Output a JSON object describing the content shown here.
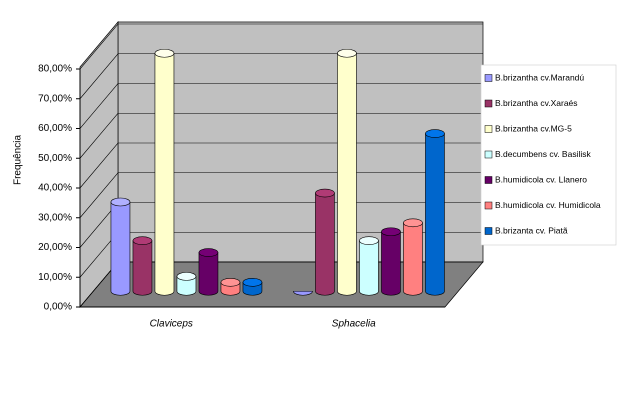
{
  "chart_data": {
    "type": "bar3d",
    "y_label": "Frequência",
    "categories": [
      "Claviceps",
      "Sphacelia"
    ],
    "series": [
      {
        "name": "B.brizantha cv.Marandú",
        "color": "#9999ff",
        "values": [
          30,
          0
        ]
      },
      {
        "name": "B.brizantha cv.Xaraés",
        "color": "#993366",
        "values": [
          17,
          33
        ]
      },
      {
        "name": "B.brizantha cv.MG-5",
        "color": "#ffffcc",
        "values": [
          80,
          80
        ]
      },
      {
        "name": "B.decumbens cv. Basilisk",
        "color": "#ccffff",
        "values": [
          5,
          17
        ]
      },
      {
        "name": "B.humidicola cv. Llanero",
        "color": "#660066",
        "values": [
          13,
          20
        ]
      },
      {
        "name": "B.humidicola cv. Humidicola",
        "color": "#ff8080",
        "values": [
          3,
          23
        ]
      },
      {
        "name": "B.brizanta cv. Piatã",
        "color": "#0066cc",
        "values": [
          3,
          53
        ]
      }
    ],
    "ylim": [
      0,
      80
    ],
    "yticks": [
      {
        "value": 0,
        "label": "0,00%"
      },
      {
        "value": 10,
        "label": "10,00%"
      },
      {
        "value": 20,
        "label": "20,00%"
      },
      {
        "value": 30,
        "label": "30,00%"
      },
      {
        "value": 40,
        "label": "40,00%"
      },
      {
        "value": 50,
        "label": "50,00%"
      },
      {
        "value": 60,
        "label": "60,00%"
      },
      {
        "value": 70,
        "label": "70,00%"
      },
      {
        "value": 80,
        "label": "80,00%"
      }
    ],
    "grid": true,
    "legend": "right"
  }
}
